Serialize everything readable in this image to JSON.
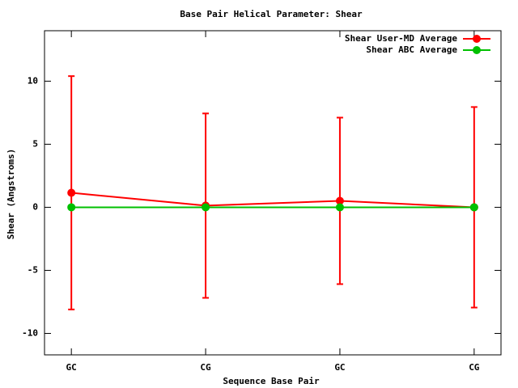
{
  "chart_data": {
    "type": "line",
    "title": "Base Pair Helical Parameter: Shear",
    "x_label": "Sequence Base Pair",
    "y_label": "Shear (Angstroms)",
    "categories": [
      "GC",
      "CG",
      "GC",
      "CG"
    ],
    "series": [
      {
        "name": "Shear User-MD Average",
        "color": "#ff0000",
        "values": [
          1.15,
          0.13,
          0.51,
          0
        ],
        "errors": [
          9.25,
          7.31,
          6.6,
          7.95
        ]
      },
      {
        "name": "Shear ABC Average",
        "color": "#00c000",
        "values": [
          0,
          0,
          0,
          0
        ]
      }
    ],
    "ylim": [
      -11.7,
      14
    ],
    "yticks": [
      -10,
      -5,
      0,
      5,
      10
    ],
    "grid": false,
    "legend": "top-right"
  }
}
